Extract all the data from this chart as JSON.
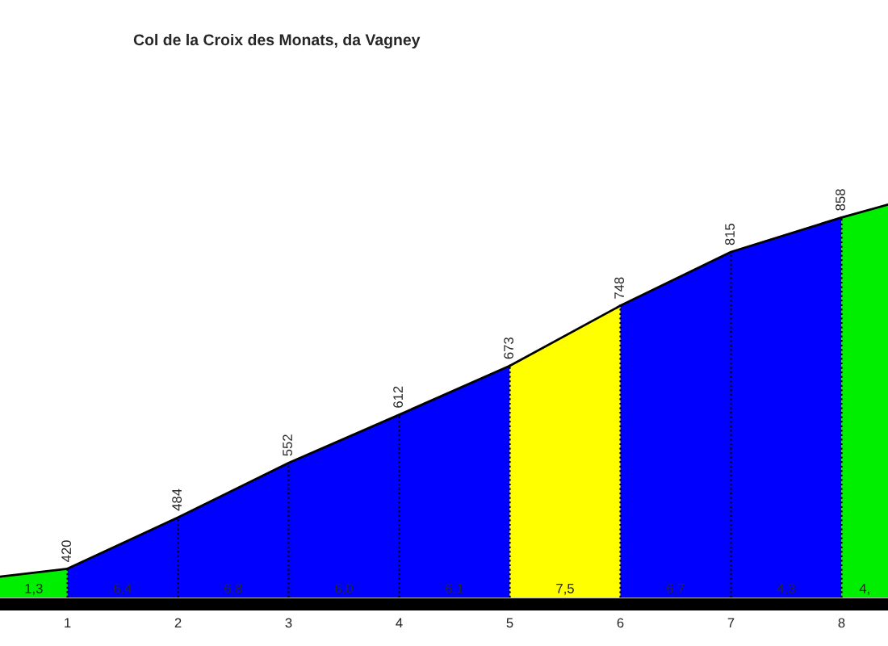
{
  "chart_data": {
    "type": "area",
    "title": "Col de la Croix des Monats, da Vagney",
    "series": [
      {
        "color": "#00ee00",
        "x": [
          0.39,
          1
        ],
        "values": [
          410,
          420
        ],
        "value_labels": [
          null,
          "420"
        ]
      },
      {
        "color": "#0000ff",
        "x": [
          1,
          2,
          3,
          4,
          5
        ],
        "values": [
          420,
          484,
          552,
          612,
          673
        ],
        "value_labels": [
          null,
          "484",
          "552",
          "612",
          "673"
        ]
      },
      {
        "color": "#ffff00",
        "x": [
          5,
          6
        ],
        "values": [
          673,
          748
        ],
        "value_labels": [
          null,
          "748"
        ]
      },
      {
        "color": "#0000ff",
        "x": [
          6,
          7,
          8
        ],
        "values": [
          748,
          815,
          858
        ],
        "value_labels": [
          null,
          "815",
          "858"
        ]
      },
      {
        "color": "#00ee00",
        "x": [
          8,
          8.42
        ],
        "values": [
          858,
          874
        ],
        "value_labels": [
          null,
          null
        ]
      }
    ],
    "xlim": [
      0.39,
      8.42
    ],
    "xticks": [
      1,
      2,
      3,
      4,
      5,
      6,
      7,
      8
    ],
    "tick_labels": "x",
    "annotations": [
      "1,3",
      "6,4",
      "6,8",
      "6,0",
      "6,1",
      "7,5",
      "6,7",
      "4,3",
      "4,"
    ]
  }
}
